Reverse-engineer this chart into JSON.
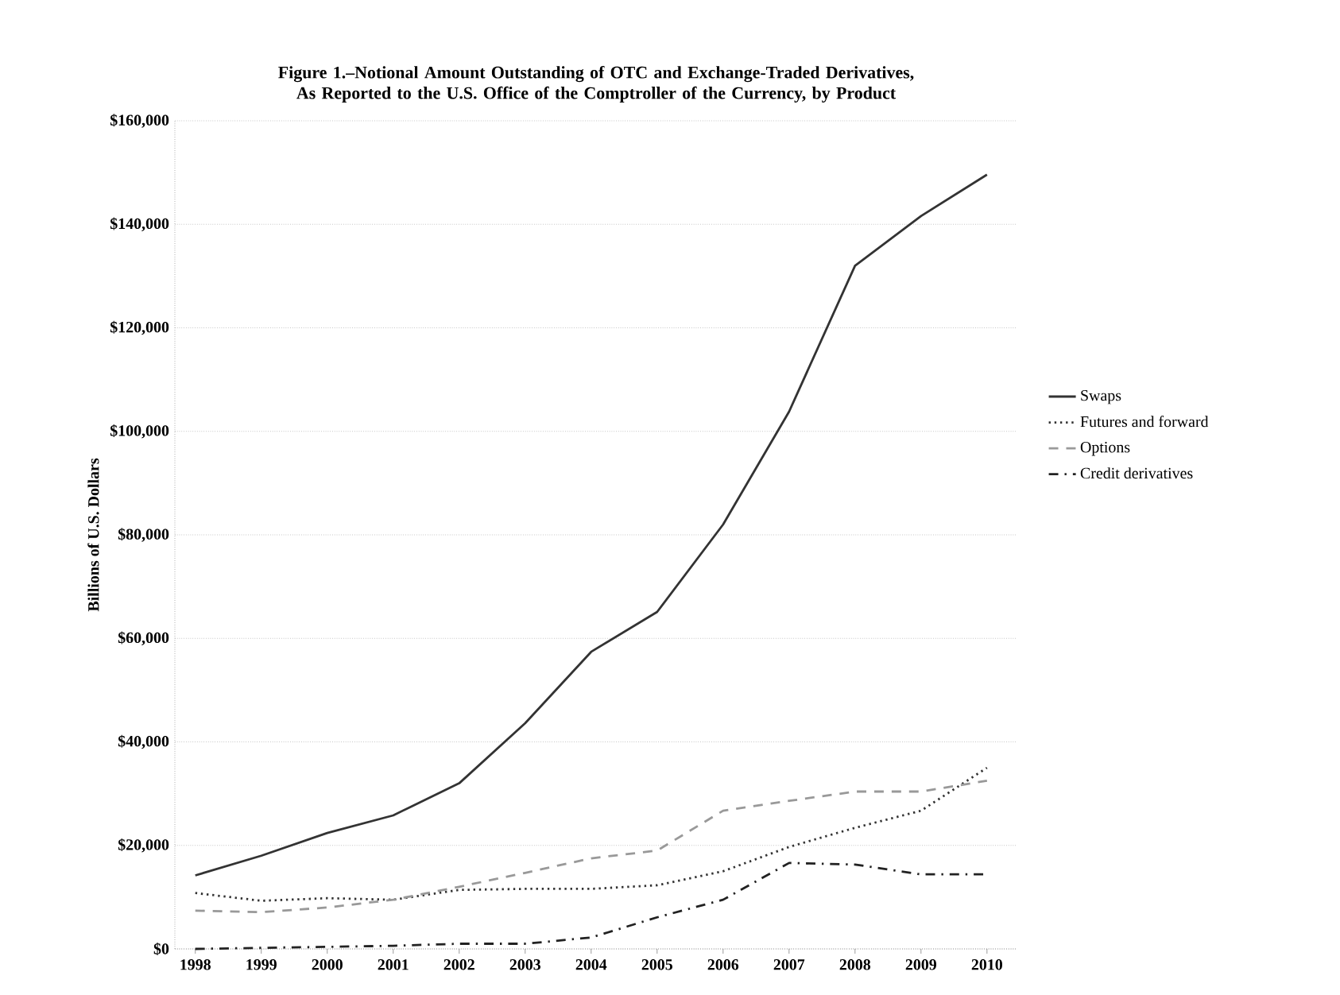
{
  "chart_data": {
    "type": "line",
    "title": "Figure 1.–Notional Amount Outstanding of OTC and Exchange-Traded Derivatives, As Reported to the U.S. Office of the Comptroller of the Currency, by Product",
    "ylabel": "Billions of U.S. Dollars",
    "categories": [
      "1998",
      "1999",
      "2000",
      "2001",
      "2002",
      "2003",
      "2004",
      "2005",
      "2006",
      "2007",
      "2008",
      "2009",
      "2010"
    ],
    "series": [
      {
        "name": "Swaps",
        "color": "#333333",
        "line_style": "solid",
        "values": [
          14200,
          18000,
          22400,
          25800,
          32000,
          43600,
          57400,
          65100,
          82000,
          103800,
          132000,
          141600,
          149600
        ]
      },
      {
        "name": "Futures and forward",
        "color": "#333333",
        "line_style": "dotted",
        "values": [
          10800,
          9300,
          9800,
          9500,
          11400,
          11600,
          11600,
          12300,
          15000,
          19700,
          23400,
          26700,
          35000
        ]
      },
      {
        "name": "Options",
        "color": "#999999",
        "line_style": "dashed",
        "values": [
          7400,
          7100,
          8000,
          9500,
          12000,
          14700,
          17500,
          19000,
          26700,
          28600,
          30400,
          30400,
          32500
        ]
      },
      {
        "name": "Credit derivatives",
        "color": "#222222",
        "line_style": "dashdot",
        "values": [
          0,
          200,
          400,
          600,
          1000,
          1000,
          2200,
          6100,
          9500,
          16600,
          16300,
          14400,
          14400
        ]
      }
    ],
    "ylim": [
      0,
      160000
    ],
    "yticks": [
      {
        "value": 0,
        "label": "$0"
      },
      {
        "value": 20000,
        "label": "$20,000"
      },
      {
        "value": 40000,
        "label": "$40,000"
      },
      {
        "value": 60000,
        "label": "$60,000"
      },
      {
        "value": 80000,
        "label": "$80,000"
      },
      {
        "value": 100000,
        "label": "$100,000"
      },
      {
        "value": 120000,
        "label": "$120,000"
      },
      {
        "value": 140000,
        "label": "$140,000"
      },
      {
        "value": 160000,
        "label": "$160,000"
      }
    ],
    "grid": "y",
    "legend": "right"
  }
}
